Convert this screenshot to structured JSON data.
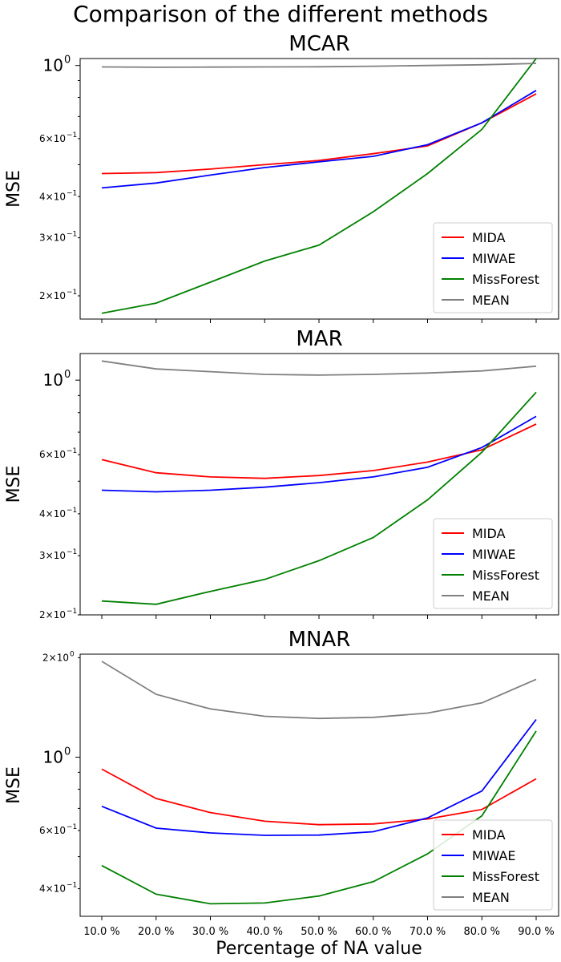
{
  "figure": {
    "title": "Comparison of the different methods",
    "xlabel": "Percentage of NA value"
  },
  "chart_data": [
    {
      "type": "line",
      "title": "MCAR",
      "ylabel": "MSE",
      "yscale": "log",
      "ylim": [
        0.17,
        1.05
      ],
      "major_ticks": [
        {
          "value": 1.0,
          "label": "10",
          "exp": "0"
        }
      ],
      "minor_ticks": [
        {
          "value": 0.6,
          "label": "6×10",
          "exp": "−1"
        },
        {
          "value": 0.4,
          "label": "4×10",
          "exp": "−1"
        },
        {
          "value": 0.3,
          "label": "3×10",
          "exp": "−1"
        },
        {
          "value": 0.2,
          "label": "2×10",
          "exp": "−1"
        }
      ],
      "minor_unlabeled": [
        0.5,
        0.7,
        0.8,
        0.9
      ],
      "categories": [
        "10.0 %",
        "20.0 %",
        "30.0 %",
        "40.0 %",
        "50.0 %",
        "60.0 %",
        "70.0 %",
        "80.0 %",
        "90.0 %"
      ],
      "series": [
        {
          "name": "MIDA",
          "color": "#ff0000",
          "values": [
            0.47,
            0.473,
            0.485,
            0.5,
            0.515,
            0.54,
            0.57,
            0.67,
            0.82
          ]
        },
        {
          "name": "MIWAE",
          "color": "#0000ff",
          "values": [
            0.425,
            0.44,
            0.465,
            0.49,
            0.51,
            0.53,
            0.575,
            0.67,
            0.84
          ]
        },
        {
          "name": "MissForest",
          "color": "#008000",
          "values": [
            0.177,
            0.19,
            0.22,
            0.255,
            0.285,
            0.36,
            0.47,
            0.64,
            1.05
          ]
        },
        {
          "name": "MEAN",
          "color": "#808080",
          "values": [
            0.99,
            0.988,
            0.989,
            0.99,
            0.991,
            0.995,
            1.0,
            1.005,
            1.015
          ]
        }
      ],
      "legend_position": "lower right",
      "grid": false
    },
    {
      "type": "line",
      "title": "MAR",
      "ylabel": "MSE",
      "yscale": "log",
      "ylim": [
        0.2,
        1.2
      ],
      "major_ticks": [
        {
          "value": 1.0,
          "label": "10",
          "exp": "0"
        }
      ],
      "minor_ticks": [
        {
          "value": 0.6,
          "label": "6×10",
          "exp": "−1"
        },
        {
          "value": 0.4,
          "label": "4×10",
          "exp": "−1"
        },
        {
          "value": 0.3,
          "label": "3×10",
          "exp": "−1"
        },
        {
          "value": 0.2,
          "label": "2×10",
          "exp": "−1"
        }
      ],
      "minor_unlabeled": [
        0.5,
        0.7,
        0.8,
        0.9
      ],
      "categories": [
        "10.0 %",
        "20.0 %",
        "30.0 %",
        "40.0 %",
        "50.0 %",
        "60.0 %",
        "70.0 %",
        "80.0 %",
        "90.0 %"
      ],
      "series": [
        {
          "name": "MIDA",
          "color": "#ff0000",
          "values": [
            0.58,
            0.53,
            0.515,
            0.51,
            0.52,
            0.538,
            0.57,
            0.62,
            0.74
          ]
        },
        {
          "name": "MIWAE",
          "color": "#0000ff",
          "values": [
            0.47,
            0.465,
            0.47,
            0.48,
            0.495,
            0.515,
            0.55,
            0.63,
            0.78
          ]
        },
        {
          "name": "MissForest",
          "color": "#008000",
          "values": [
            0.22,
            0.215,
            0.235,
            0.255,
            0.29,
            0.34,
            0.44,
            0.61,
            0.92
          ]
        },
        {
          "name": "MEAN",
          "color": "#808080",
          "values": [
            1.14,
            1.08,
            1.06,
            1.04,
            1.035,
            1.04,
            1.05,
            1.065,
            1.1
          ]
        }
      ],
      "legend_position": "lower right",
      "grid": false
    },
    {
      "type": "line",
      "title": "MNAR",
      "ylabel": "MSE",
      "yscale": "log",
      "ylim": [
        0.33,
        2.05
      ],
      "major_ticks": [
        {
          "value": 1.0,
          "label": "10",
          "exp": "0"
        }
      ],
      "minor_ticks": [
        {
          "value": 2.0,
          "label": "2×10",
          "exp": "0"
        },
        {
          "value": 0.6,
          "label": "6×10",
          "exp": "−1"
        },
        {
          "value": 0.4,
          "label": "4×10",
          "exp": "−1"
        }
      ],
      "minor_unlabeled": [
        0.5,
        0.7,
        0.8,
        0.9
      ],
      "categories": [
        "10.0 %",
        "20.0 %",
        "30.0 %",
        "40.0 %",
        "50.0 %",
        "60.0 %",
        "70.0 %",
        "80.0 %",
        "90.0 %"
      ],
      "series": [
        {
          "name": "MIDA",
          "color": "#ff0000",
          "values": [
            0.92,
            0.75,
            0.68,
            0.64,
            0.625,
            0.628,
            0.65,
            0.695,
            0.86
          ]
        },
        {
          "name": "MIWAE",
          "color": "#0000ff",
          "values": [
            0.71,
            0.61,
            0.59,
            0.58,
            0.581,
            0.595,
            0.655,
            0.79,
            1.3
          ]
        },
        {
          "name": "MissForest",
          "color": "#008000",
          "values": [
            0.47,
            0.385,
            0.36,
            0.362,
            0.38,
            0.42,
            0.51,
            0.665,
            1.2
          ]
        },
        {
          "name": "MEAN",
          "color": "#808080",
          "values": [
            1.95,
            1.55,
            1.4,
            1.33,
            1.31,
            1.32,
            1.36,
            1.46,
            1.72
          ]
        }
      ],
      "legend_position": "lower right",
      "grid": false
    }
  ]
}
